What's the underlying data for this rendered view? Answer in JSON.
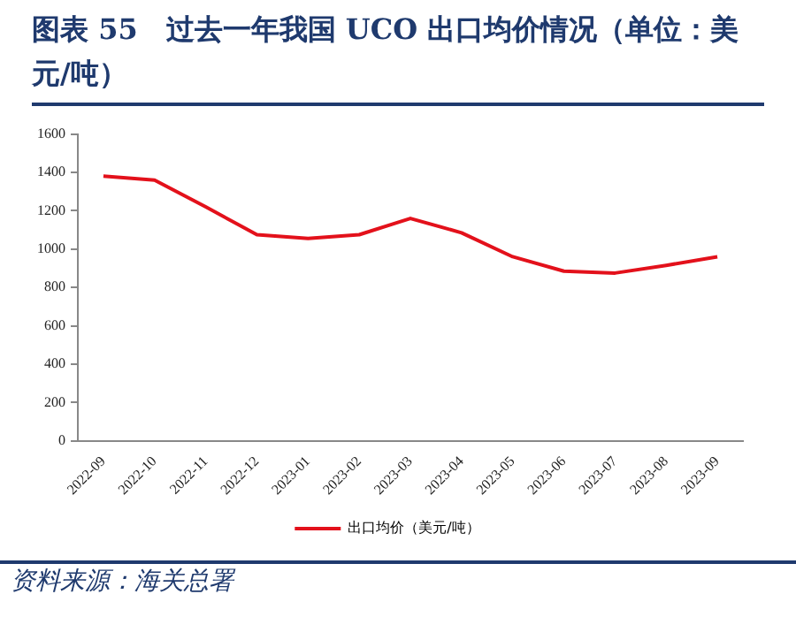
{
  "chart_data": {
    "type": "line",
    "title": "图表 55　过去一年我国 UCO 出口均价情况（单位：美元/吨）",
    "categories": [
      "2022-09",
      "2022-10",
      "2022-11",
      "2022-12",
      "2023-01",
      "2023-02",
      "2023-03",
      "2023-04",
      "2023-05",
      "2023-06",
      "2023-07",
      "2023-08",
      "2023-09"
    ],
    "series": [
      {
        "name": "出口均价（美元/吨）",
        "color": "#e3111b",
        "values": [
          1380,
          1360,
          1220,
          1075,
          1055,
          1075,
          1160,
          1085,
          960,
          885,
          875,
          915,
          960
        ]
      }
    ],
    "ylim": [
      0,
      1600
    ],
    "yticks": [
      0,
      200,
      400,
      600,
      800,
      1000,
      1200,
      1400,
      1600
    ],
    "grid": false,
    "legend": "bottom",
    "marker": "none",
    "line_style": "solid",
    "annotations": [
      "资料来源：海关总署"
    ]
  }
}
